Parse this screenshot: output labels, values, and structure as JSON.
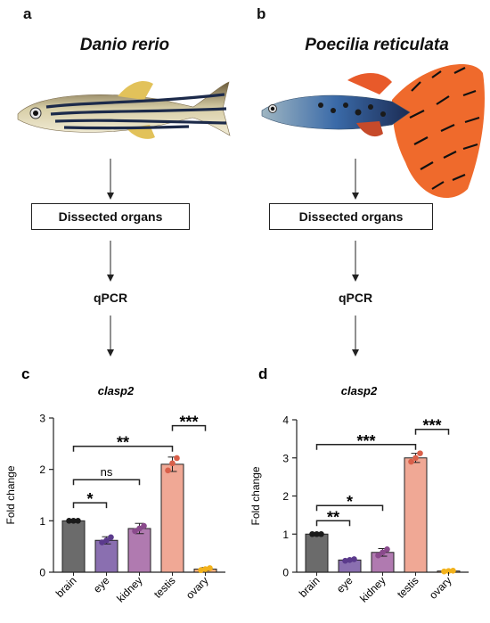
{
  "panels": {
    "a": {
      "letter": "a",
      "species": "Danio rerio",
      "step1": "Dissected organs",
      "step2": "qPCR"
    },
    "b": {
      "letter": "b",
      "species": "Poecilia reticulata",
      "step1": "Dissected organs",
      "step2": "qPCR"
    }
  },
  "chart_data": [
    {
      "letter": "c",
      "type": "bar",
      "title": "clasp2",
      "ylabel": "Fold change",
      "categories": [
        "brain",
        "eye",
        "kidney",
        "testis",
        "ovary"
      ],
      "values": [
        1.0,
        0.62,
        0.85,
        2.1,
        0.06
      ],
      "errors": [
        0.0,
        0.07,
        0.1,
        0.14,
        0.03
      ],
      "points": [
        [
          1.0,
          1.0,
          1.0
        ],
        [
          0.58,
          0.62,
          0.68
        ],
        [
          0.8,
          0.85,
          0.9
        ],
        [
          1.98,
          2.12,
          2.22
        ],
        [
          0.04,
          0.06,
          0.08
        ]
      ],
      "colors": [
        "#6b6b6b",
        "#8a6fb0",
        "#b07ab0",
        "#f0a895",
        "#f4b183"
      ],
      "dot_colors": [
        "#1a1a1a",
        "#5b3a8c",
        "#8a4a8c",
        "#d9604a",
        "#f2b21c"
      ],
      "ylim": [
        0,
        3
      ],
      "yticks": [
        0,
        1,
        2,
        3
      ],
      "comparisons": [
        {
          "from": 0,
          "to": 1,
          "label": "*",
          "y": 1.35
        },
        {
          "from": 0,
          "to": 2,
          "label": "ns",
          "y": 1.8
        },
        {
          "from": 0,
          "to": 3,
          "label": "**",
          "y": 2.45
        },
        {
          "from": 3,
          "to": 4,
          "label": "***",
          "y": 2.85
        }
      ]
    },
    {
      "letter": "d",
      "type": "bar",
      "title": "clasp2",
      "ylabel": "Fold change",
      "categories": [
        "brain",
        "eye",
        "kidney",
        "testis",
        "ovary"
      ],
      "values": [
        1.0,
        0.32,
        0.52,
        3.0,
        0.03
      ],
      "errors": [
        0.0,
        0.03,
        0.1,
        0.12,
        0.01
      ],
      "points": [
        [
          1.0,
          1.0,
          1.0
        ],
        [
          0.3,
          0.32,
          0.34
        ],
        [
          0.44,
          0.52,
          0.6
        ],
        [
          2.9,
          3.0,
          3.12
        ],
        [
          0.02,
          0.03,
          0.04
        ]
      ],
      "colors": [
        "#6b6b6b",
        "#8a6fb0",
        "#b07ab0",
        "#f0a895",
        "#f4b183"
      ],
      "dot_colors": [
        "#1a1a1a",
        "#5b3a8c",
        "#8a4a8c",
        "#d9604a",
        "#f2b21c"
      ],
      "ylim": [
        0,
        4
      ],
      "yticks": [
        0,
        1,
        2,
        3,
        4
      ],
      "comparisons": [
        {
          "from": 0,
          "to": 1,
          "label": "**",
          "y": 1.35
        },
        {
          "from": 0,
          "to": 2,
          "label": "*",
          "y": 1.75
        },
        {
          "from": 0,
          "to": 3,
          "label": "***",
          "y": 3.35
        },
        {
          "from": 3,
          "to": 4,
          "label": "***",
          "y": 3.75
        }
      ]
    }
  ]
}
